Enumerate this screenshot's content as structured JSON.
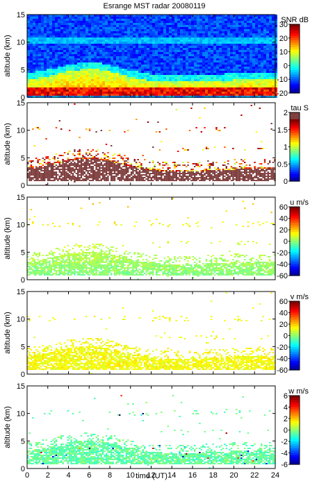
{
  "chart_data": {
    "title": "Esrange MST radar 20080119",
    "type": "heatmap",
    "panels": [
      {
        "id": "snr",
        "ylabel": "altitude (km)",
        "colorbar_label": "SNR dB",
        "colorbar_range": [
          -20,
          30
        ],
        "colorbar_ticks": [
          "30",
          "20",
          "10",
          "0",
          "-10",
          "-20"
        ],
        "xlim": [
          0,
          24
        ],
        "ylim": [
          0,
          15
        ],
        "yticks": [
          "0",
          "5",
          "10",
          "15"
        ],
        "fill": "full"
      },
      {
        "id": "tau",
        "ylabel": "altitude (km)",
        "colorbar_label": "tau S",
        "colorbar_range": [
          0,
          2
        ],
        "colorbar_ticks": [
          "2",
          "1.5",
          "1",
          "0.5",
          "0"
        ],
        "xlim": [
          0,
          24
        ],
        "ylim": [
          0,
          15
        ],
        "yticks": [
          "0",
          "5",
          "10",
          "15"
        ],
        "fill": "sparse"
      },
      {
        "id": "u",
        "ylabel": "altitude (km)",
        "colorbar_label": "u m/s",
        "colorbar_range": [
          -60,
          60
        ],
        "colorbar_ticks": [
          "60",
          "40",
          "20",
          "0",
          "-20",
          "-40",
          "-60"
        ],
        "xlim": [
          0,
          24
        ],
        "ylim": [
          0,
          15
        ],
        "yticks": [
          "0",
          "5",
          "10",
          "15"
        ],
        "fill": "sparse"
      },
      {
        "id": "v",
        "ylabel": "altitude (km)",
        "colorbar_label": "v m/s",
        "colorbar_range": [
          -60,
          60
        ],
        "colorbar_ticks": [
          "60",
          "40",
          "20",
          "0",
          "-20",
          "-40",
          "-60"
        ],
        "xlim": [
          0,
          24
        ],
        "ylim": [
          0,
          15
        ],
        "yticks": [
          "0",
          "5",
          "10",
          "15"
        ],
        "fill": "sparse"
      },
      {
        "id": "w",
        "ylabel": "altitude (km)",
        "colorbar_label": "w m/s",
        "colorbar_range": [
          -6,
          6
        ],
        "colorbar_ticks": [
          "6",
          "4",
          "2",
          "0",
          "-2",
          "-4",
          "-6"
        ],
        "xlim": [
          0,
          24
        ],
        "ylim": [
          0,
          15
        ],
        "yticks": [
          "0",
          "5",
          "10",
          "15"
        ],
        "fill": "sparse"
      }
    ],
    "xlabel": "time (UT)",
    "xticks": [
      "0",
      "2",
      "4",
      "6",
      "8",
      "10",
      "12",
      "14",
      "16",
      "18",
      "20",
      "22",
      "24"
    ]
  }
}
